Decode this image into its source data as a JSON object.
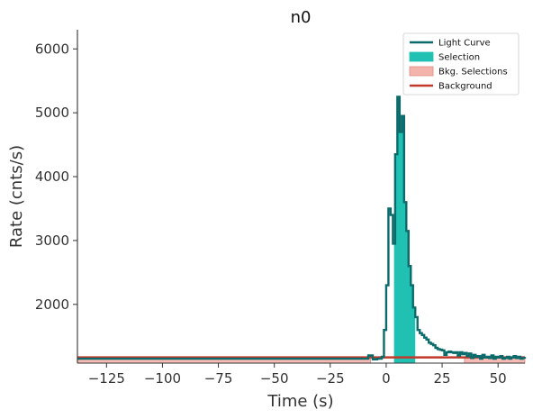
{
  "chart_data": {
    "type": "line",
    "title": "n0",
    "xlabel": "Time (s)",
    "ylabel": "Rate (cnts/s)",
    "xlim": [
      -138,
      62
    ],
    "ylim": [
      1080,
      6300
    ],
    "xticks": [
      -125,
      -100,
      -75,
      -50,
      -25,
      0,
      25,
      50
    ],
    "xtick_labels": [
      "−125",
      "−100",
      "−75",
      "−50",
      "−25",
      "0",
      "25",
      "50"
    ],
    "yticks": [
      2000,
      3000,
      4000,
      5000,
      6000
    ],
    "ytick_labels": [
      "2000",
      "3000",
      "4000",
      "5000",
      "6000"
    ],
    "grid": false,
    "legend_position": "top-right",
    "legend": [
      {
        "label": "Light Curve",
        "kind": "line",
        "color": "#0b6b6b"
      },
      {
        "label": "Selection",
        "kind": "patch",
        "color": "#20c0b3"
      },
      {
        "label": "Bkg. Selections",
        "kind": "patch",
        "color": "#f4b4ac",
        "edge": "#e08a80"
      },
      {
        "label": "Background",
        "kind": "line",
        "color": "#c0392b"
      }
    ],
    "background_level": 1170,
    "source_selection": [
      3.5,
      13.0
    ],
    "bkg_selections": [
      [
        -138,
        -7
      ],
      [
        35,
        62
      ]
    ],
    "light_curve": {
      "x": [
        -138,
        -10,
        -8,
        -6,
        -4,
        -2,
        -1,
        0,
        1,
        2,
        3,
        4,
        5,
        6,
        7,
        8,
        9,
        10,
        11,
        12,
        13,
        14,
        15,
        16,
        17,
        18,
        19,
        20,
        21,
        22,
        23,
        24,
        25,
        26,
        27,
        28,
        29,
        30,
        31,
        32,
        33,
        34,
        35,
        36,
        37,
        38,
        39,
        40,
        41,
        42,
        43,
        44,
        45,
        46,
        47,
        48,
        49,
        50,
        51,
        52,
        53,
        54,
        55,
        56,
        57,
        58,
        59,
        60,
        61,
        62
      ],
      "y": [
        1150,
        1150,
        1200,
        1140,
        1150,
        1180,
        1600,
        2300,
        3500,
        3400,
        2950,
        4350,
        5250,
        4700,
        4950,
        3600,
        3150,
        2600,
        2300,
        1950,
        1800,
        1600,
        1550,
        1520,
        1480,
        1450,
        1400,
        1380,
        1360,
        1320,
        1300,
        1290,
        1280,
        1210,
        1250,
        1260,
        1250,
        1240,
        1250,
        1200,
        1250,
        1220,
        1240,
        1190,
        1230,
        1160,
        1210,
        1180,
        1190,
        1150,
        1210,
        1170,
        1180,
        1160,
        1200,
        1150,
        1180,
        1170,
        1190,
        1150,
        1160,
        1180,
        1150,
        1170,
        1190,
        1160,
        1180,
        1150,
        1160,
        1150
      ]
    }
  }
}
